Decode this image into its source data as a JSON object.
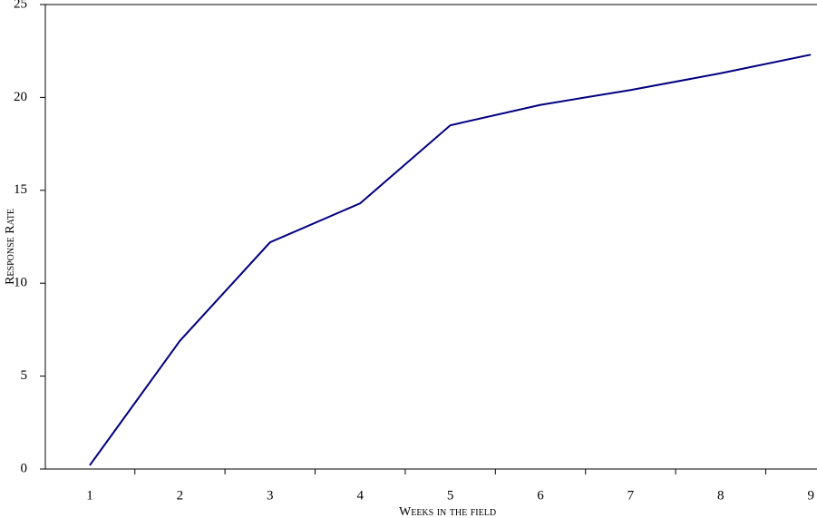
{
  "chart_data": {
    "type": "line",
    "x_label": "Weeks in the field",
    "y_label": "Response Rate",
    "categories": [
      "1",
      "2",
      "3",
      "4",
      "5",
      "6",
      "7",
      "8",
      "9"
    ],
    "series": [
      {
        "name": "Response rate",
        "color": "#000080",
        "values": [
          0.2,
          6.9,
          12.2,
          14.3,
          18.5,
          19.6,
          20.4,
          21.3,
          22.3
        ]
      }
    ],
    "ylim": [
      0,
      25
    ],
    "yticks": [
      0,
      5,
      10,
      15,
      20,
      25
    ]
  }
}
